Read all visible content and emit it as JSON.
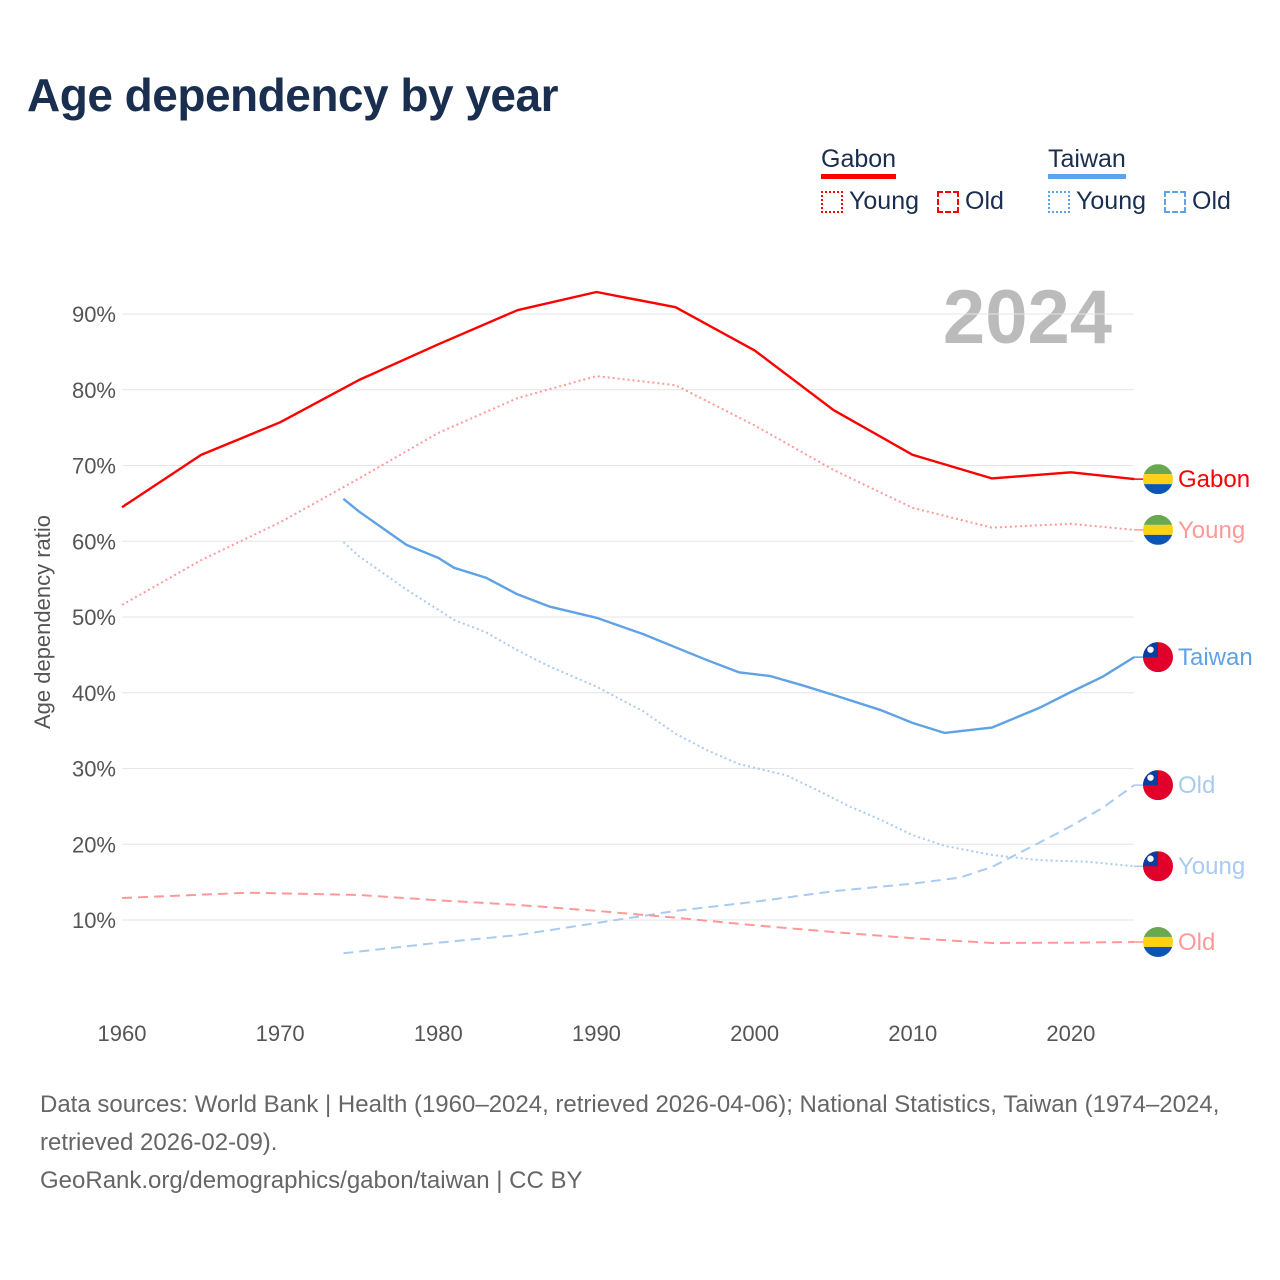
{
  "title": "Age dependency by year",
  "legend": {
    "groups": [
      {
        "name": "Gabon",
        "color": "#ff0000",
        "light": "#ff9999",
        "items": [
          "Young",
          "Old"
        ]
      },
      {
        "name": "Taiwan",
        "color": "#5fa2e6",
        "light": "#a9cbf0",
        "items": [
          "Young",
          "Old"
        ]
      }
    ]
  },
  "year_watermark": "2024",
  "chart_data": {
    "type": "line",
    "title": "Age dependency by year",
    "xlabel": "",
    "ylabel": "Age dependency ratio",
    "xlim": [
      1960,
      2024
    ],
    "ylim": [
      0,
      95
    ],
    "x_ticks": [
      1960,
      1970,
      1980,
      1990,
      2000,
      2010,
      2020
    ],
    "y_ticks": [
      10,
      20,
      30,
      40,
      50,
      60,
      70,
      80,
      90
    ],
    "y_tick_labels": [
      "10%",
      "20%",
      "30%",
      "40%",
      "50%",
      "60%",
      "70%",
      "80%",
      "90%"
    ],
    "grid": true,
    "legend_position": "top-right",
    "series": [
      {
        "name": "Gabon",
        "label": "Gabon",
        "country": "gabon",
        "style": "solid",
        "color": "#ff0000",
        "x": [
          1960,
          1965,
          1970,
          1975,
          1980,
          1985,
          1990,
          1995,
          2000,
          2005,
          2010,
          2015,
          2020,
          2024
        ],
        "values": [
          64.5,
          71.4,
          75.7,
          81.3,
          86.0,
          90.5,
          92.9,
          90.9,
          85.2,
          77.3,
          71.4,
          68.3,
          69.1,
          68.2
        ]
      },
      {
        "name": "Gabon Young",
        "label": "Young",
        "country": "gabon",
        "style": "dotted",
        "color": "#ff9999",
        "x": [
          1960,
          1965,
          1970,
          1975,
          1980,
          1985,
          1990,
          1995,
          2000,
          2005,
          2010,
          2015,
          2020,
          2024
        ],
        "values": [
          51.6,
          57.5,
          62.5,
          68.3,
          74.3,
          78.9,
          81.8,
          80.6,
          75.3,
          69.4,
          64.4,
          61.8,
          62.3,
          61.5
        ]
      },
      {
        "name": "Taiwan",
        "label": "Taiwan",
        "country": "taiwan",
        "style": "solid",
        "color": "#5fa2e6",
        "x": [
          1974,
          1975,
          1978,
          1980,
          1981,
          1983,
          1985,
          1987,
          1990,
          1993,
          1995,
          1997,
          1999,
          2001,
          2003,
          2005,
          2008,
          2010,
          2012,
          2015,
          2018,
          2020,
          2022,
          2024
        ],
        "values": [
          65.6,
          63.9,
          59.5,
          57.8,
          56.5,
          55.2,
          53.0,
          51.4,
          49.9,
          47.7,
          46.0,
          44.3,
          42.7,
          42.2,
          41.0,
          39.7,
          37.7,
          36.0,
          34.7,
          35.4,
          38.0,
          40.1,
          42.1,
          44.7
        ]
      },
      {
        "name": "Taiwan Old",
        "label": "Old",
        "country": "taiwan",
        "style": "dashed",
        "color": "#a9cbf0",
        "x": [
          1974,
          1980,
          1985,
          1990,
          1995,
          2000,
          2005,
          2010,
          2013,
          2015,
          2018,
          2020,
          2022,
          2024
        ],
        "values": [
          5.6,
          7.0,
          8.0,
          9.6,
          11.2,
          12.4,
          13.8,
          14.8,
          15.6,
          17.0,
          20.2,
          22.4,
          24.8,
          27.8
        ]
      },
      {
        "name": "Taiwan Young",
        "label": "Young",
        "country": "taiwan",
        "style": "dotted",
        "color": "#a9cbf0",
        "x": [
          1974,
          1975,
          1978,
          1981,
          1983,
          1985,
          1987,
          1990,
          1993,
          1995,
          1997,
          1999,
          2002,
          2004,
          2006,
          2008,
          2010,
          2012,
          2015,
          2018,
          2021,
          2024
        ],
        "values": [
          59.9,
          58.0,
          53.6,
          49.6,
          48.0,
          45.6,
          43.5,
          40.8,
          37.5,
          34.6,
          32.4,
          30.6,
          29.1,
          27.1,
          25.0,
          23.2,
          21.2,
          19.8,
          18.6,
          17.9,
          17.7,
          17.1
        ]
      },
      {
        "name": "Gabon Old",
        "label": "Old",
        "country": "gabon",
        "style": "dashed",
        "color": "#ff9999",
        "x": [
          1960,
          1968,
          1975,
          1980,
          1985,
          1990,
          1995,
          2000,
          2005,
          2010,
          2015,
          2020,
          2024
        ],
        "values": [
          12.9,
          13.6,
          13.3,
          12.6,
          12.0,
          11.2,
          10.3,
          9.3,
          8.4,
          7.6,
          6.97,
          7.0,
          7.1
        ]
      }
    ]
  },
  "footer": {
    "sources": "Data sources: World Bank | Health (1960–2024, retrieved 2026-04-06); National Statistics, Taiwan (1974–2024, retrieved 2026-02-09).",
    "credit": "GeoRank.org/demographics/gabon/taiwan | CC BY"
  }
}
